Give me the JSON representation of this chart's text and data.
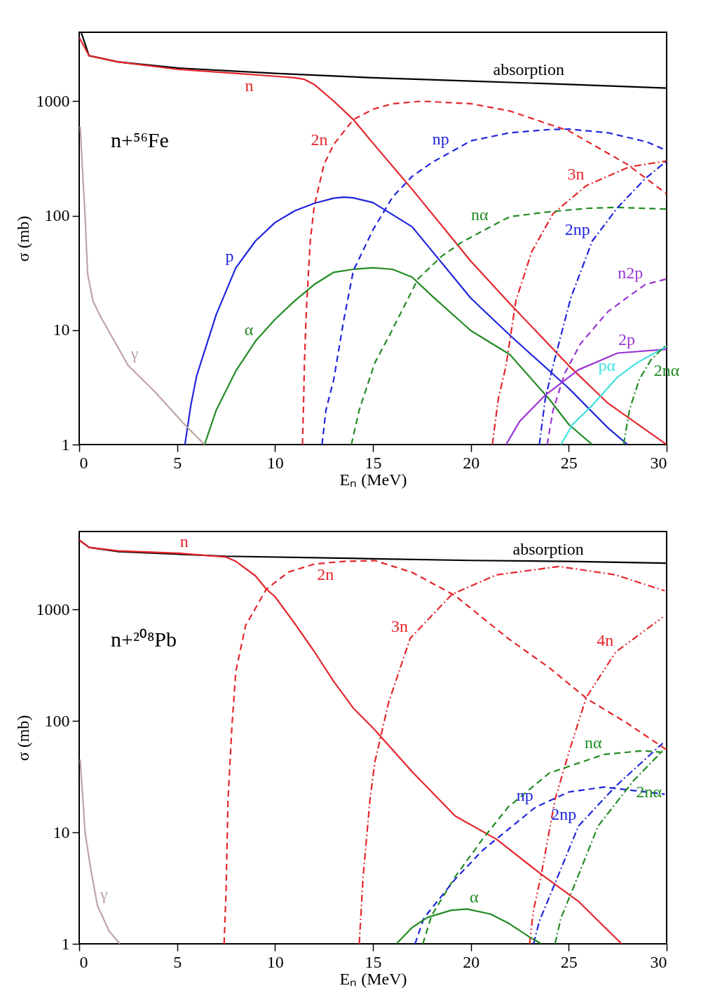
{
  "chart_data": [
    {
      "type": "line",
      "title": "n+⁵⁶Fe",
      "xlabel": "Eₙ (MeV)",
      "ylabel": "σ (mb)",
      "log": "y",
      "grid": false,
      "xlim": [
        0,
        30
      ],
      "xticks": [
        0,
        5,
        10,
        15,
        20,
        25,
        30
      ],
      "ylim": [
        1,
        4000
      ],
      "yticks": [
        1,
        10,
        100,
        1000
      ],
      "series": [
        {
          "color": "#000000",
          "line_style": "solid",
          "x": [
            0.1,
            0.5,
            2,
            5,
            10,
            15,
            20,
            25,
            30
          ],
          "values": [
            4000,
            2500,
            2200,
            1950,
            1750,
            1600,
            1500,
            1400,
            1300
          ]
        },
        {
          "color": "#e4262b",
          "line_style": "solid",
          "x": [
            0,
            0.5,
            2,
            5,
            8,
            10,
            11,
            11.5,
            12,
            13,
            14,
            15,
            17,
            20,
            22,
            25,
            27,
            30
          ],
          "values": [
            3600,
            2500,
            2200,
            1900,
            1750,
            1650,
            1600,
            1550,
            1400,
            1000,
            690,
            430,
            170,
            40,
            17,
            4.9,
            2.3,
            1
          ]
        },
        {
          "color": "#e4262b",
          "line_style": "dashed",
          "x": [
            11.4,
            11.45,
            11.5,
            11.6,
            11.8,
            12,
            12.5,
            13,
            14,
            15,
            16,
            17.5,
            20,
            22,
            25,
            28,
            30
          ],
          "values": [
            1,
            2,
            5,
            15,
            60,
            120,
            280,
            420,
            690,
            850,
            950,
            1000,
            950,
            820,
            550,
            280,
            155
          ]
        },
        {
          "color": "#1f24dc",
          "line_style": "solid",
          "x": [
            5.4,
            5.7,
            6,
            7,
            8,
            9,
            10,
            11,
            12,
            13,
            13.5,
            14,
            15,
            17,
            20,
            22,
            25,
            27,
            28
          ],
          "values": [
            1,
            2.2,
            4,
            13.7,
            35,
            60,
            87,
            110,
            128,
            142,
            145,
            143,
            130,
            80,
            19,
            9,
            3.1,
            1.4,
            1
          ]
        },
        {
          "color": "#228b22",
          "line_style": "solid",
          "x": [
            6.4,
            7,
            8,
            9,
            10,
            11,
            12,
            13,
            14,
            15,
            16,
            17,
            18,
            20,
            22,
            24,
            25,
            26.2
          ],
          "values": [
            1,
            2,
            4.4,
            8,
            12.4,
            18,
            25,
            32,
            34,
            35,
            34,
            29,
            20,
            9.9,
            6.1,
            2.5,
            1.5,
            1
          ]
        },
        {
          "color": "#bfa3a3",
          "line_style": "solid",
          "x": [
            0.05,
            0.2,
            0.3,
            0.43,
            0.7,
            1.1,
            1.8,
            2.5,
            3.9,
            5.3,
            6.4
          ],
          "values": [
            600,
            200,
            100,
            31,
            18,
            13,
            8,
            4.9,
            2.85,
            1.55,
            1
          ]
        },
        {
          "color": "#1f24dc",
          "line_style": "dashed",
          "x": [
            12.4,
            12.6,
            13,
            13.5,
            14,
            15,
            16,
            17,
            18,
            20,
            22,
            24,
            25,
            27,
            29,
            30
          ],
          "values": [
            1,
            2,
            3.7,
            12,
            33,
            75,
            145,
            220,
            290,
            450,
            530,
            565,
            570,
            530,
            440,
            370
          ]
        },
        {
          "color": "#e4262b",
          "line_style": "dashdot",
          "x": [
            21.1,
            21.4,
            21.8,
            22.3,
            23.1,
            24.2,
            25.9,
            28.1,
            30
          ],
          "values": [
            1,
            2.5,
            4.9,
            18,
            48,
            104,
            183,
            267,
            300
          ]
        },
        {
          "color": "#228b22",
          "line_style": "dashed",
          "x": [
            13.9,
            14.3,
            15.1,
            15.9,
            17.3,
            18.5,
            19.5,
            21,
            22,
            24,
            26,
            27.5,
            30
          ],
          "values": [
            1,
            2,
            5.2,
            9.4,
            28,
            44,
            58,
            80,
            98,
            108,
            116,
            118,
            114
          ]
        },
        {
          "color": "#1f24dc",
          "line_style": "dashdot",
          "x": [
            23.5,
            23.8,
            24.2,
            25.1,
            26.2,
            27.5,
            28.9,
            30
          ],
          "values": [
            1,
            2.5,
            4.9,
            19,
            60,
            118,
            210,
            300
          ]
        },
        {
          "color": "#9a35d4",
          "line_style": "dashed",
          "x": [
            23.9,
            24.2,
            24.8,
            25.6,
            27,
            28.9,
            30
          ],
          "values": [
            1,
            2,
            4.2,
            7.6,
            14.5,
            25,
            28
          ]
        },
        {
          "color": "#9a35d4",
          "line_style": "solid",
          "x": [
            21.8,
            22.5,
            23.8,
            25.5,
            27.5,
            30
          ],
          "values": [
            1,
            1.6,
            2.7,
            4.5,
            6.3,
            6.8
          ]
        },
        {
          "color": "#40e0e0",
          "line_style": "solid",
          "x": [
            24.6,
            25.2,
            26.2,
            27.5,
            28.5,
            30
          ],
          "values": [
            1,
            1.5,
            2.2,
            3.9,
            5.2,
            7.2
          ]
        },
        {
          "color": "#228b22",
          "line_style": "dashdot",
          "x": [
            27.8,
            28.1,
            28.6,
            29.2,
            30
          ],
          "values": [
            1,
            2,
            3.7,
            5.5,
            7.5
          ]
        }
      ],
      "annotations": [
        {
          "text": "absorption",
          "x": 21,
          "y": 1480
        },
        {
          "text": "n",
          "x": 9,
          "y": 1700
        },
        {
          "text": "2n",
          "x": 12.8,
          "y": 364
        },
        {
          "text": "np",
          "x": 19,
          "y": 370
        },
        {
          "text": "3n",
          "x": 25.9,
          "y": 183
        },
        {
          "text": "nα",
          "x": 21,
          "y": 80
        },
        {
          "text": "2np",
          "x": 26.2,
          "y": 60
        },
        {
          "text": "n2p",
          "x": 28.9,
          "y": 25
        },
        {
          "text": "2p",
          "x": 28.5,
          "y": 6.5
        },
        {
          "text": "pα",
          "x": 27.5,
          "y": 3.9
        },
        {
          "text": "2nα",
          "x": 29.2,
          "y": 5.5
        },
        {
          "text": "p",
          "x": 8,
          "y": 35
        },
        {
          "text": "α",
          "x": 9,
          "y": 8
        },
        {
          "text": "γ",
          "x": 2.5,
          "y": 4.9
        }
      ]
    },
    {
      "type": "line",
      "title": "n+²⁰⁸Pb",
      "xlabel": "Eₙ (MeV)",
      "ylabel": "σ (mb)",
      "log": "y",
      "grid": false,
      "xlim": [
        0,
        30
      ],
      "xticks": [
        0,
        5,
        10,
        15,
        20,
        25,
        30
      ],
      "ylim": [
        1,
        5000
      ],
      "yticks": [
        1,
        10,
        100,
        1000
      ],
      "series": [
        {
          "color": "#000000",
          "line_style": "solid",
          "x": [
            0,
            0.5,
            2,
            7.5,
            15,
            20,
            25,
            30
          ],
          "values": [
            4200,
            3600,
            3300,
            3000,
            2850,
            2750,
            2700,
            2600
          ]
        },
        {
          "color": "#e4262b",
          "line_style": "solid",
          "x": [
            0,
            0.5,
            2,
            5,
            7.5,
            8,
            9,
            9.56,
            10,
            11,
            12,
            13,
            14,
            15.1,
            17,
            19.2,
            21.3,
            23.6,
            25.5,
            27.7
          ],
          "values": [
            4200,
            3600,
            3350,
            3200,
            2950,
            2700,
            2000,
            1520,
            1300,
            750,
            420,
            226,
            130,
            83,
            35,
            14,
            8.7,
            4.2,
            2.4,
            1
          ]
        },
        {
          "color": "#e4262b",
          "line_style": "dashed",
          "x": [
            7.4,
            7.5,
            7.6,
            7.8,
            8,
            8.5,
            9.56,
            10.7,
            12,
            13.5,
            15.1,
            17,
            19.2,
            21.9,
            24,
            26,
            28,
            30
          ],
          "values": [
            1,
            3,
            19.7,
            90,
            280,
            720,
            1520,
            2170,
            2550,
            2700,
            2740,
            2150,
            1330,
            550,
            300,
            155,
            95,
            55
          ]
        },
        {
          "color": "#e4262b",
          "line_style": "dashdot",
          "x": [
            14.3,
            14.5,
            14.85,
            15.1,
            15.8,
            16.9,
            19.05,
            21.3,
            24.5,
            27.4,
            29.9
          ],
          "values": [
            1,
            4,
            19.7,
            43,
            146,
            550,
            1370,
            2040,
            2430,
            2040,
            1470
          ]
        },
        {
          "color": "#e4262b",
          "line_style": "dashdotdot",
          "x": [
            23,
            23.2,
            23.6,
            24.3,
            25.1,
            25.9,
            27.4,
            29.8
          ],
          "values": [
            1,
            2,
            4.2,
            19.7,
            59,
            163,
            415,
            850
          ]
        },
        {
          "color": "#228b22",
          "line_style": "dashed",
          "x": [
            17.55,
            18,
            19.2,
            20.6,
            21.9,
            24,
            26.8,
            28.8,
            29.9
          ],
          "values": [
            1,
            1.8,
            4,
            8.7,
            16.8,
            34,
            50,
            54,
            52
          ]
        },
        {
          "color": "#1f24dc",
          "line_style": "dashed",
          "x": [
            17.15,
            17.6,
            19.2,
            20.6,
            21.3,
            23.3,
            25,
            26.8,
            29.9
          ],
          "values": [
            1,
            1.7,
            3.8,
            6.9,
            8.7,
            16.8,
            23,
            25.5,
            22
          ]
        },
        {
          "color": "#1f24dc",
          "line_style": "dashdot",
          "x": [
            23.2,
            23.5,
            24.3,
            25.5,
            27.4,
            29.8
          ],
          "values": [
            1,
            1.6,
            3.5,
            11.4,
            26,
            63
          ]
        },
        {
          "color": "#228b22",
          "line_style": "dashdot",
          "x": [
            24.3,
            24.6,
            25.3,
            26.5,
            28.3,
            29.8
          ],
          "values": [
            1,
            1.7,
            3.4,
            11.4,
            29,
            54
          ]
        },
        {
          "color": "#228b22",
          "line_style": "solid",
          "x": [
            16.2,
            17,
            17.8,
            19,
            19.8,
            21,
            21.9,
            23,
            23.6
          ],
          "values": [
            1,
            1.4,
            1.73,
            2,
            2.05,
            1.85,
            1.54,
            1.15,
            1
          ]
        },
        {
          "color": "#bfa3a3",
          "line_style": "solid",
          "x": [
            0.05,
            0.3,
            0.57,
            0.93,
            1.53,
            2.07
          ],
          "values": [
            45,
            10,
            4.9,
            2.2,
            1.3,
            1
          ]
        }
      ],
      "annotations": [
        {
          "text": "absorption",
          "x": 22,
          "y": 2730
        },
        {
          "text": "n",
          "x": 5,
          "y": 3200
        },
        {
          "text": "2n",
          "x": 12,
          "y": 2550
        },
        {
          "text": "3n",
          "x": 16.9,
          "y": 550
        },
        {
          "text": "4n",
          "x": 27.4,
          "y": 415
        },
        {
          "text": "nα",
          "x": 26.8,
          "y": 50
        },
        {
          "text": "np",
          "x": 23.3,
          "y": 16.8
        },
        {
          "text": "2np",
          "x": 25.5,
          "y": 11.4
        },
        {
          "text": "2nα",
          "x": 28.3,
          "y": 29
        },
        {
          "text": "α",
          "x": 19.8,
          "y": 2.05
        },
        {
          "text": "γ",
          "x": 0.93,
          "y": 2.2
        }
      ]
    }
  ]
}
